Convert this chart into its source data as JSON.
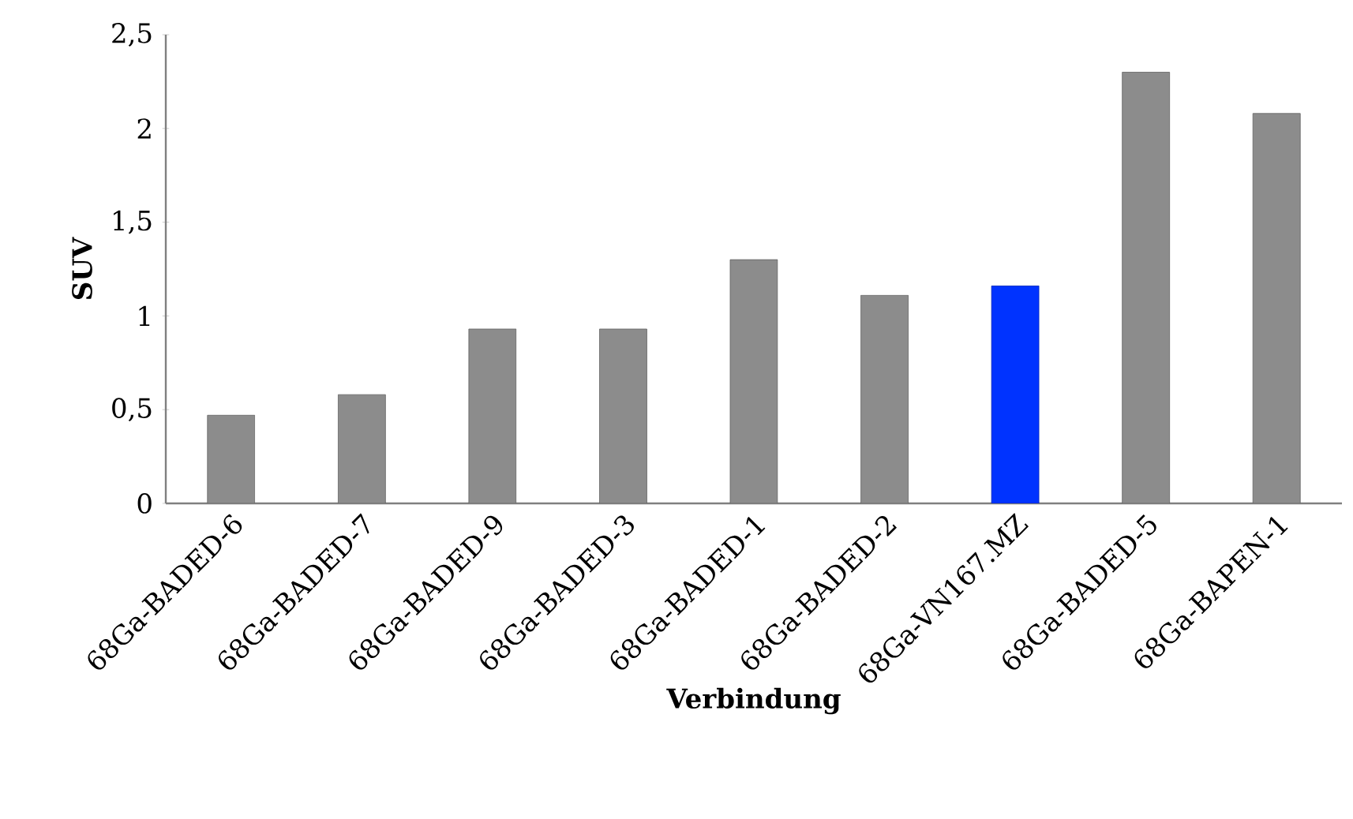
{
  "chart_data": {
    "type": "bar",
    "xlabel": "Verbindung",
    "ylabel": "SUV",
    "categories": [
      "68Ga-BADED-6",
      "68Ga-BADED-7",
      "68Ga-BADED-9",
      "68Ga-BADED-3",
      "68Ga-BADED-1",
      "68Ga-BADED-2",
      "68Ga-VN167.MZ",
      "68Ga-BADED-5",
      "68Ga-BAPEN-1"
    ],
    "values": [
      0.47,
      0.58,
      0.93,
      0.93,
      1.3,
      1.11,
      1.16,
      2.3,
      2.08
    ],
    "colors": [
      "#8c8c8c",
      "#8c8c8c",
      "#8c8c8c",
      "#8c8c8c",
      "#8c8c8c",
      "#8c8c8c",
      "#0033ff",
      "#8c8c8c",
      "#8c8c8c"
    ],
    "ylim": [
      0,
      2.5
    ],
    "yticks": [
      0,
      {
        "value": 0.5,
        "label": "0,5"
      },
      1,
      {
        "value": 1.5,
        "label": "1,5"
      },
      2,
      {
        "value": 2.5,
        "label": "2,5"
      }
    ],
    "grid": false
  }
}
